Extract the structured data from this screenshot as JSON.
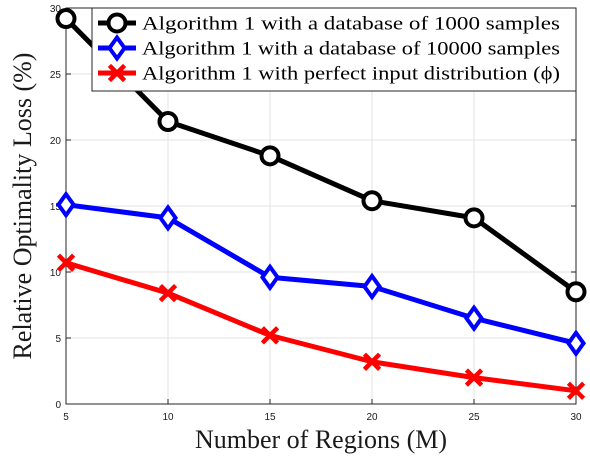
{
  "chart_data": {
    "type": "line",
    "title": "",
    "xlabel": "Number of Regions (M)",
    "ylabel": "Relative Optimality Loss (%)",
    "x": [
      5,
      10,
      15,
      20,
      25,
      30
    ],
    "xlim": [
      5,
      30
    ],
    "ylim": [
      0,
      30
    ],
    "xticks": [
      5,
      10,
      15,
      20,
      25,
      30
    ],
    "yticks": [
      0,
      5,
      10,
      15,
      20,
      25,
      30
    ],
    "grid": true,
    "legend_position": "top-right",
    "series": [
      {
        "name": "Algorithm 1 with a database of 1000 samples",
        "values": [
          29.2,
          21.4,
          18.8,
          15.4,
          14.1,
          8.5
        ],
        "color": "#000000",
        "marker": "circle"
      },
      {
        "name": "Algorithm 1 with a database of 10000 samples",
        "values": [
          15.1,
          14.1,
          9.6,
          8.9,
          6.5,
          4.6
        ],
        "color": "#0000ff",
        "marker": "diamond"
      },
      {
        "name": "Algorithm 1 with perfect input distribution (ϕ)",
        "values": [
          10.7,
          8.4,
          5.2,
          3.2,
          2.0,
          1.0
        ],
        "color": "#ff0000",
        "marker": "x"
      }
    ]
  }
}
